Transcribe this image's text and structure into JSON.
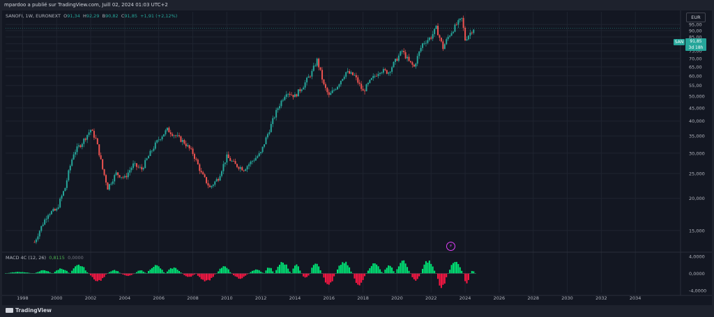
{
  "header": {
    "published_by": "mpardoo a publié sur TradingView.com, Juill 02, 2024 01:03 UTC+2"
  },
  "legend": {
    "symbol": "SANOFI, 1W, EURONEXT",
    "open_label": "O",
    "open": "91,34",
    "high_label": "H",
    "high": "92,29",
    "low_label": "B",
    "low": "90,82",
    "close_label": "C",
    "close": "91,85",
    "change": "+1,91 (+2,12%)"
  },
  "currency": "EUR",
  "price_tag": {
    "symbol": "SAN",
    "price": "91,85",
    "countdown": "3d 18h"
  },
  "macd_legend": {
    "name": "MACD 4C (12, 26)",
    "value1": "0,8115",
    "value2": "0,0000"
  },
  "branding": {
    "logo_text": "TradingView"
  },
  "colors": {
    "up": "#26a69a",
    "down": "#ef5350",
    "macd_up": "#00e676",
    "macd_down": "#ff1744",
    "background": "#131722"
  },
  "icons": {
    "alert": "bolt-icon",
    "logo": "tradingview-logo"
  },
  "chart_data": [
    {
      "type": "candlestick",
      "title": "",
      "symbol": "SANOFI",
      "timeframe": "1W",
      "scale": "log",
      "ylim": [
        12.5,
        100
      ],
      "xlim": [
        1997.0,
        2036.0
      ],
      "x_ticks": [
        1998,
        2000,
        2002,
        2004,
        2006,
        2008,
        2010,
        2012,
        2014,
        2016,
        2018,
        2020,
        2022,
        2024,
        2026,
        2028,
        2030,
        2032,
        2034
      ],
      "y_ticks": [
        {
          "v": 15,
          "t": "15,000"
        },
        {
          "v": 20,
          "t": "20,000"
        },
        {
          "v": 25,
          "t": "25,000"
        },
        {
          "v": 30,
          "t": "30,000"
        },
        {
          "v": 35,
          "t": "35,000"
        },
        {
          "v": 40,
          "t": "40,000"
        },
        {
          "v": 45,
          "t": "45,000"
        },
        {
          "v": 50,
          "t": "50,000"
        },
        {
          "v": 55,
          "t": "55,00"
        },
        {
          "v": 60,
          "t": "60,00"
        },
        {
          "v": 65,
          "t": "65,00"
        },
        {
          "v": 70,
          "t": "70,00"
        },
        {
          "v": 75,
          "t": "75,00"
        },
        {
          "v": 80,
          "t": "80,00"
        },
        {
          "v": 85,
          "t": "85,00"
        },
        {
          "v": 90,
          "t": "90,00"
        },
        {
          "v": 95,
          "t": "95,00"
        }
      ],
      "last_price": 91.85,
      "path": [
        [
          1998.7,
          13.5
        ],
        [
          1999.0,
          15.0
        ],
        [
          1999.5,
          17.5
        ],
        [
          2000.0,
          18.0
        ],
        [
          2000.5,
          22.0
        ],
        [
          2001.0,
          30.0
        ],
        [
          2001.5,
          33.0
        ],
        [
          2002.0,
          37.0
        ],
        [
          2002.3,
          34.0
        ],
        [
          2002.7,
          26.0
        ],
        [
          2003.0,
          22.0
        ],
        [
          2003.5,
          25.0
        ],
        [
          2004.0,
          24.0
        ],
        [
          2004.5,
          27.0
        ],
        [
          2005.0,
          26.0
        ],
        [
          2005.5,
          30.0
        ],
        [
          2006.0,
          34.0
        ],
        [
          2006.5,
          37.0
        ],
        [
          2007.0,
          35.0
        ],
        [
          2007.5,
          33.0
        ],
        [
          2008.0,
          30.0
        ],
        [
          2008.5,
          25.0
        ],
        [
          2009.0,
          22.0
        ],
        [
          2009.5,
          24.0
        ],
        [
          2010.0,
          29.0
        ],
        [
          2010.5,
          27.0
        ],
        [
          2011.0,
          26.0
        ],
        [
          2011.5,
          28.0
        ],
        [
          2012.0,
          30.0
        ],
        [
          2012.5,
          37.0
        ],
        [
          2013.0,
          45.0
        ],
        [
          2013.5,
          52.0
        ],
        [
          2014.0,
          50.0
        ],
        [
          2014.5,
          55.0
        ],
        [
          2015.0,
          62.0
        ],
        [
          2015.3,
          69.0
        ],
        [
          2015.7,
          55.0
        ],
        [
          2016.0,
          50.0
        ],
        [
          2016.5,
          55.0
        ],
        [
          2017.0,
          62.0
        ],
        [
          2017.5,
          60.0
        ],
        [
          2018.0,
          52.0
        ],
        [
          2018.5,
          58.0
        ],
        [
          2019.0,
          63.0
        ],
        [
          2019.5,
          62.0
        ],
        [
          2020.0,
          70.0
        ],
        [
          2020.3,
          75.0
        ],
        [
          2020.7,
          68.0
        ],
        [
          2021.0,
          65.0
        ],
        [
          2021.5,
          80.0
        ],
        [
          2022.0,
          85.0
        ],
        [
          2022.3,
          92.0
        ],
        [
          2022.7,
          77.0
        ],
        [
          2023.0,
          85.0
        ],
        [
          2023.5,
          95.0
        ],
        [
          2023.8,
          100.0
        ],
        [
          2024.0,
          83.0
        ],
        [
          2024.5,
          91.85
        ]
      ]
    },
    {
      "type": "histogram",
      "name": "MACD 4C (12, 26)",
      "ylim": [
        -4.5,
        4.5
      ],
      "y_ticks": [
        {
          "v": 4,
          "t": "4,0000"
        },
        {
          "v": 0,
          "t": "0,0000"
        },
        {
          "v": -4,
          "t": "-4,0000"
        }
      ],
      "segments": [
        [
          1997.0,
          1998.7,
          0.4
        ],
        [
          1998.7,
          1999.8,
          0.8
        ],
        [
          1999.8,
          2000.8,
          1.3
        ],
        [
          2000.8,
          2001.9,
          2.2
        ],
        [
          2001.9,
          2003.0,
          -2.0
        ],
        [
          2003.0,
          2003.8,
          0.9
        ],
        [
          2003.8,
          2004.6,
          -0.6
        ],
        [
          2004.6,
          2005.3,
          0.8
        ],
        [
          2005.3,
          2006.4,
          2.1
        ],
        [
          2006.4,
          2007.4,
          1.5
        ],
        [
          2007.4,
          2008.2,
          -1.0
        ],
        [
          2008.2,
          2009.4,
          -2.1
        ],
        [
          2009.4,
          2010.3,
          1.8
        ],
        [
          2010.3,
          2011.3,
          -1.3
        ],
        [
          2011.3,
          2012.2,
          1.0
        ],
        [
          2012.2,
          2012.8,
          1.6
        ],
        [
          2012.8,
          2013.8,
          2.9
        ],
        [
          2013.8,
          2014.4,
          2.3
        ],
        [
          2014.4,
          2014.9,
          -1.2
        ],
        [
          2014.9,
          2015.6,
          3.0
        ],
        [
          2015.6,
          2016.4,
          -3.0
        ],
        [
          2016.4,
          2017.4,
          3.0
        ],
        [
          2017.4,
          2018.2,
          -3.2
        ],
        [
          2018.2,
          2019.2,
          2.6
        ],
        [
          2019.2,
          2019.9,
          2.2
        ],
        [
          2019.9,
          2020.8,
          3.2
        ],
        [
          2020.8,
          2021.4,
          -1.8
        ],
        [
          2021.4,
          2022.3,
          3.3
        ],
        [
          2022.3,
          2023.0,
          -3.7
        ],
        [
          2023.0,
          2023.9,
          3.0
        ],
        [
          2023.9,
          2024.3,
          -2.5
        ],
        [
          2024.3,
          2024.6,
          0.8
        ]
      ]
    }
  ]
}
